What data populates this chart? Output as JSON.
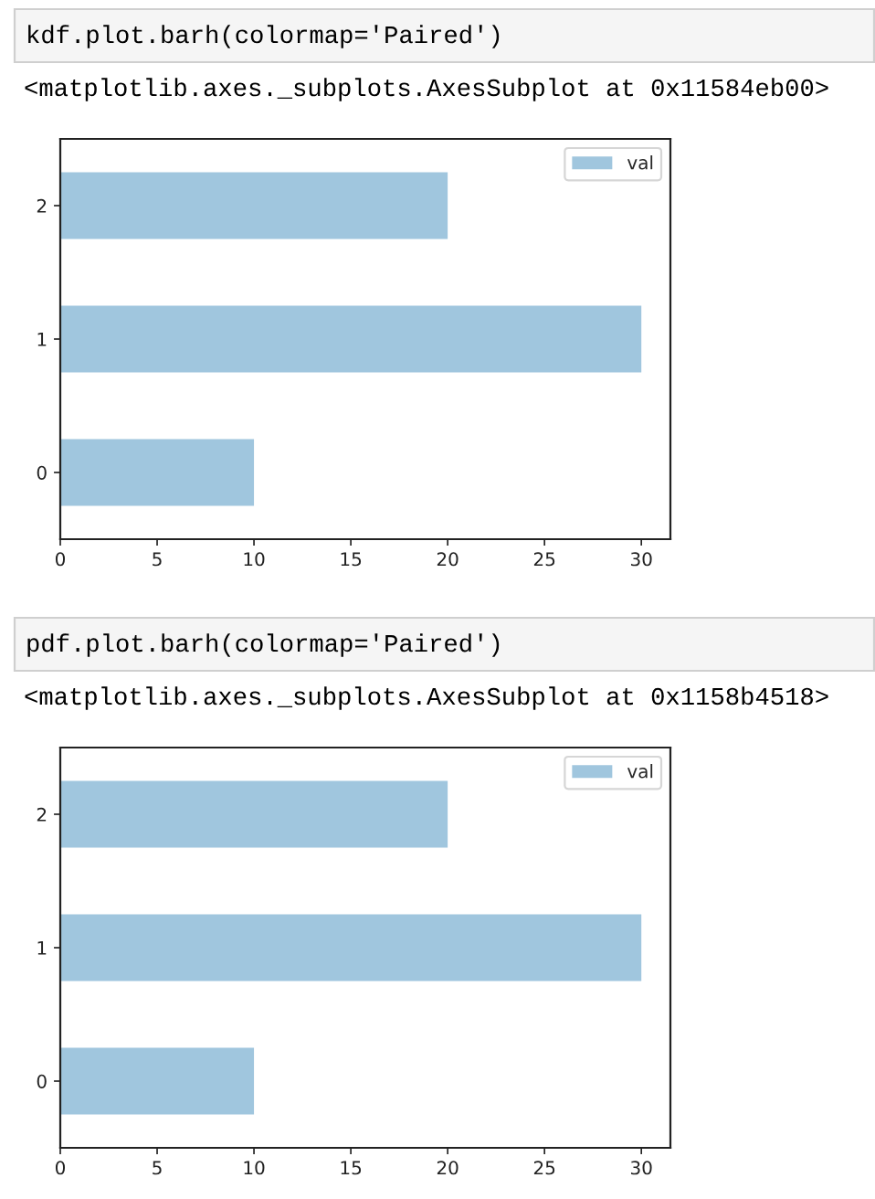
{
  "chart_data": [
    {
      "type": "bar",
      "orientation": "horizontal",
      "categories": [
        "2",
        "1",
        "0"
      ],
      "series": [
        {
          "name": "val",
          "color": "#a0c6de",
          "values": [
            20,
            30,
            10
          ]
        }
      ],
      "xlim": [
        0,
        31.5
      ],
      "xticks": [
        0,
        5,
        10,
        15,
        20,
        25,
        30
      ],
      "legend": "top right",
      "annotations": [
        "kdf.plot.barh(colormap='Paired')",
        "<matplotlib.axes._subplots.AxesSubplot at 0x11584eb00>"
      ]
    },
    {
      "type": "bar",
      "orientation": "horizontal",
      "categories": [
        "2",
        "1",
        "0"
      ],
      "series": [
        {
          "name": "val",
          "color": "#a0c6de",
          "values": [
            20,
            30,
            10
          ]
        }
      ],
      "xlim": [
        0,
        31.5
      ],
      "xticks": [
        0,
        5,
        10,
        15,
        20,
        25,
        30
      ],
      "legend": "top right",
      "annotations": [
        "pdf.plot.barh(colormap='Paired')",
        "<matplotlib.axes._subplots.AxesSubplot at 0x1158b4518>"
      ]
    }
  ]
}
